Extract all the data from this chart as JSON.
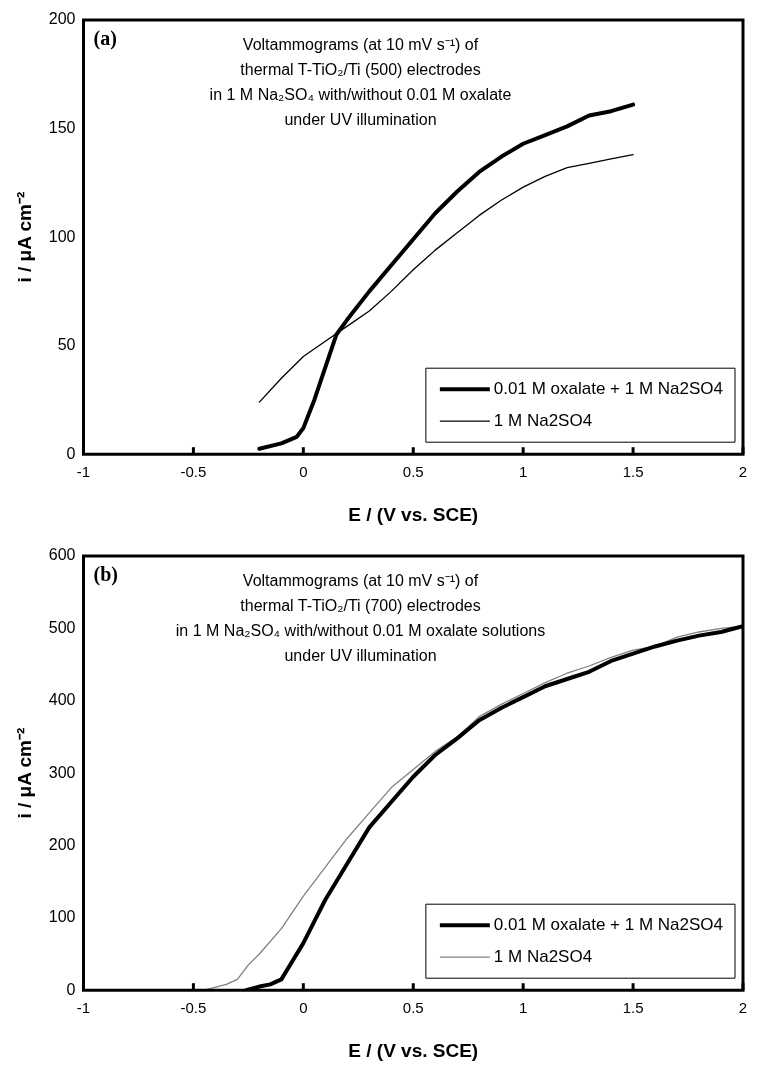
{
  "chart_data": [
    {
      "type": "line",
      "title": "Voltammograms (at 10 mV s⁻¹) of\nthermal T-TiO₂/Ti (500) electrodes\nin 1 M Na₂SO₄ with/without 0.01 M oxalate\nunder UV illumination",
      "xlabel": "E / (V vs. SCE)",
      "ylabel": "i / μA cm⁻²",
      "annotations": [
        "(a)"
      ],
      "xlim": [
        -1,
        2
      ],
      "xticks": [
        -1,
        -0.5,
        0,
        0.5,
        1,
        1.5,
        2
      ],
      "ylim": [
        0,
        200
      ],
      "yticks": [
        0,
        50,
        100,
        150,
        200
      ],
      "legend": "bottom right",
      "series": [
        {
          "name": "0.01 M oxalate + 1 M Na2SO4",
          "color": "#000000",
          "x": [
            -0.2,
            -0.1,
            -0.03,
            0,
            0.05,
            0.1,
            0.15,
            0.2,
            0.3,
            0.4,
            0.5,
            0.6,
            0.7,
            0.8,
            0.9,
            1.0,
            1.1,
            1.2,
            1.3,
            1.4,
            1.5
          ],
          "values": [
            2.5,
            5,
            8,
            12,
            25,
            40,
            55,
            62,
            75,
            87,
            99,
            111,
            121,
            130,
            137,
            143,
            147,
            151,
            156,
            158,
            161
          ]
        },
        {
          "name": "1 M Na2SO4",
          "color": "#000000",
          "x": [
            -0.2,
            -0.1,
            0,
            0.1,
            0.2,
            0.3,
            0.4,
            0.5,
            0.6,
            0.7,
            0.8,
            0.9,
            1.0,
            1.1,
            1.2,
            1.3,
            1.4,
            1.5
          ],
          "values": [
            24,
            35,
            45,
            52,
            59,
            66,
            75,
            85,
            94,
            102,
            110,
            117,
            123,
            128,
            132,
            134,
            136,
            138
          ]
        }
      ]
    },
    {
      "type": "line",
      "title": "Voltammograms (at 10 mV s⁻¹) of\nthermal T-TiO₂/Ti (700) electrodes\nin 1 M Na₂SO₄ with/without 0.01 M oxalate solutions\nunder UV illumination",
      "xlabel": "E / (V vs. SCE)",
      "ylabel": "i / μA cm⁻²",
      "annotations": [
        "(b)"
      ],
      "xlim": [
        -1,
        2
      ],
      "xticks": [
        -1,
        -0.5,
        0,
        0.5,
        1,
        1.5,
        2
      ],
      "ylim": [
        0,
        600
      ],
      "yticks": [
        0,
        100,
        200,
        300,
        400,
        500,
        600
      ],
      "legend": "bottom right",
      "series": [
        {
          "name": "0.01 M oxalate + 1 M Na2SO4",
          "color": "#000000",
          "x": [
            -0.26,
            -0.2,
            -0.15,
            -0.1,
            -0.05,
            0,
            0.05,
            0.1,
            0.2,
            0.3,
            0.4,
            0.5,
            0.6,
            0.7,
            0.8,
            0.9,
            1.0,
            1.1,
            1.2,
            1.3,
            1.4,
            1.5,
            1.6,
            1.7,
            1.8,
            1.9,
            2.0
          ],
          "values": [
            0,
            5,
            8,
            15,
            40,
            65,
            95,
            125,
            175,
            225,
            260,
            295,
            325,
            348,
            373,
            390,
            405,
            420,
            430,
            440,
            455,
            465,
            475,
            483,
            490,
            495,
            503
          ]
        },
        {
          "name": "1 M Na2SO4",
          "color": "#808080",
          "x": [
            -0.45,
            -0.35,
            -0.3,
            -0.25,
            -0.2,
            -0.1,
            0,
            0.1,
            0.2,
            0.3,
            0.4,
            0.5,
            0.6,
            0.7,
            0.8,
            0.9,
            1.0,
            1.1,
            1.2,
            1.3,
            1.4,
            1.5,
            1.6,
            1.7,
            1.8,
            1.9,
            2.0
          ],
          "values": [
            0,
            8,
            15,
            35,
            50,
            85,
            130,
            170,
            210,
            245,
            280,
            305,
            330,
            350,
            378,
            395,
            410,
            425,
            438,
            448,
            460,
            470,
            475,
            488,
            495,
            500,
            503
          ]
        }
      ]
    }
  ]
}
